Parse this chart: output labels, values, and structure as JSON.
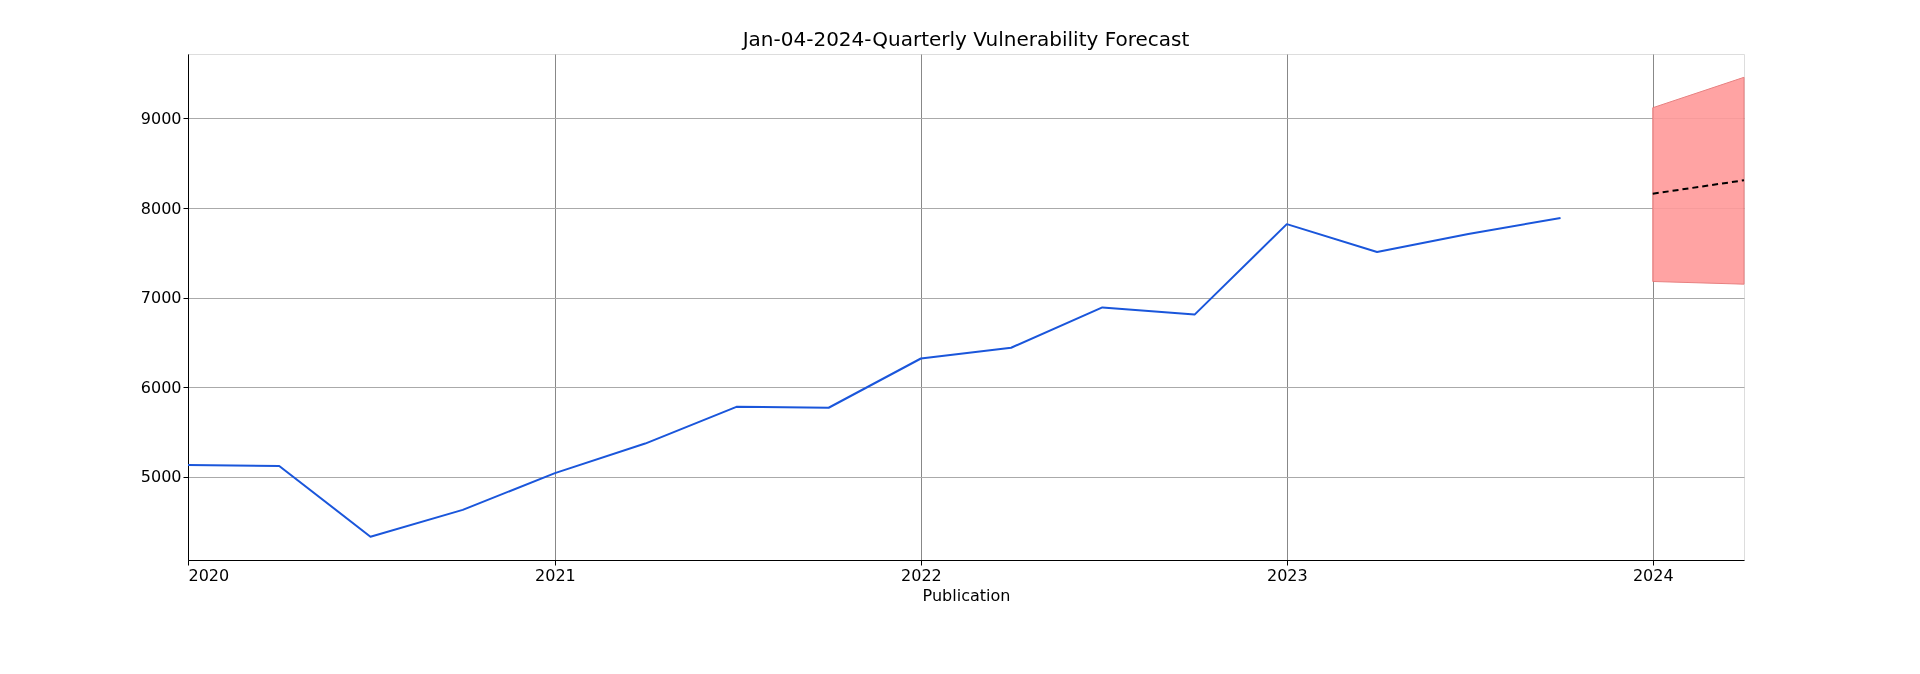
{
  "chart_data": {
    "type": "line",
    "title": "Jan-04-2024-Quarterly Vulnerability Forecast",
    "xlabel": "Publication",
    "xlim": [
      "2020-01",
      "2024-04"
    ],
    "xticks": [
      "2020",
      "2021",
      "2022",
      "2023",
      "2024"
    ],
    "ylim": [
      4070,
      9720
    ],
    "yticks": [
      5000,
      6000,
      7000,
      8000,
      9000
    ],
    "grid": true,
    "series": [
      {
        "color": "#1a56db",
        "line_style": "solid",
        "x": [
          "2020-01",
          "2020-04",
          "2020-07",
          "2020-10",
          "2021-01",
          "2021-04",
          "2021-07",
          "2021-10",
          "2022-01",
          "2022-04",
          "2022-07",
          "2022-10",
          "2023-01",
          "2023-04",
          "2023-07",
          "2023-10"
        ],
        "values": [
          5130,
          5120,
          4330,
          4630,
          5040,
          5370,
          5780,
          5770,
          6320,
          6440,
          6890,
          6810,
          7820,
          7510,
          7710,
          7890
        ]
      },
      {
        "color": "#000000",
        "line_style": "dashed",
        "x": [
          "2024-01",
          "2024-04"
        ],
        "values": [
          8160,
          8310
        ],
        "lower": [
          7180,
          7150
        ],
        "upper": [
          9120,
          9460
        ]
      }
    ]
  }
}
